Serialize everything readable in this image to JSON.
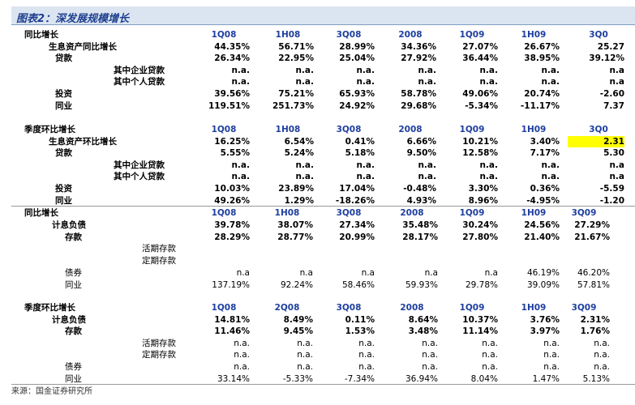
{
  "title": "图表2：深发展规模增长",
  "sections": [
    {
      "header": [
        "同比增长",
        "1Q08",
        "1H08",
        "3Q08",
        "2008",
        "1Q09",
        "1H09",
        "3Q0"
      ],
      "rows": [
        {
          "label": "生息资产同比增长",
          "values": [
            "44.35%",
            "56.71%",
            "28.99%",
            "34.36%",
            "27.07%",
            "26.67%",
            "25.27"
          ]
        },
        {
          "label": "贷款",
          "values": [
            "26.34%",
            "22.95%",
            "25.04%",
            "27.92%",
            "36.44%",
            "38.95%",
            "39.12%"
          ]
        },
        {
          "label": "其中企业贷款",
          "values": [
            "n.a.",
            "n.a.",
            "n.a.",
            "n.a.",
            "n.a.",
            "n.a.",
            "n.a"
          ]
        },
        {
          "label": "其中个人贷款",
          "values": [
            "n.a.",
            "n.a.",
            "n.a.",
            "n.a.",
            "n.a.",
            "n.a.",
            "n.a"
          ]
        },
        {
          "label": "投资",
          "values": [
            "39.56%",
            "75.21%",
            "65.93%",
            "58.78%",
            "49.06%",
            "20.74%",
            "-2.60"
          ]
        },
        {
          "label": "同业",
          "values": [
            "119.51%",
            "251.73%",
            "24.92%",
            "29.68%",
            "-5.34%",
            "-11.17%",
            "7.37"
          ]
        }
      ]
    },
    {
      "header": [
        "季度环比增长",
        "1Q08",
        "1H08",
        "3Q08",
        "2008",
        "1Q09",
        "1H09",
        "3Q0"
      ],
      "rows": [
        {
          "label": "生息资产环比增长",
          "values": [
            "16.25%",
            "6.54%",
            "0.41%",
            "6.66%",
            "10.21%",
            "3.40%",
            "2.31"
          ]
        },
        {
          "label": "贷款",
          "values": [
            "5.55%",
            "5.24%",
            "5.18%",
            "9.50%",
            "12.58%",
            "7.17%",
            "5.30"
          ]
        },
        {
          "label": "其中企业贷款",
          "values": [
            "n.a.",
            "n.a.",
            "n.a.",
            "n.a.",
            "n.a.",
            "n.a.",
            "n.a"
          ]
        },
        {
          "label": "其中个人贷款",
          "values": [
            "n.a.",
            "n.a.",
            "n.a.",
            "n.a.",
            "n.a.",
            "n.a.",
            "n.a"
          ]
        },
        {
          "label": "投资",
          "values": [
            "10.03%",
            "23.89%",
            "17.04%",
            "-0.48%",
            "3.30%",
            "0.36%",
            "-5.59"
          ]
        },
        {
          "label": "同业",
          "values": [
            "49.26%",
            "1.29%",
            "-18.26%",
            "4.93%",
            "8.96%",
            "-4.95%",
            "-1.20"
          ]
        }
      ]
    },
    {
      "header": [
        "同比增长",
        "1Q08",
        "1H08",
        "3Q08",
        "2008",
        "1Q09",
        "1H09",
        "3Q09"
      ],
      "rows": [
        {
          "label": "计息负债",
          "values": [
            "39.78%",
            "38.07%",
            "27.34%",
            "35.48%",
            "30.24%",
            "24.56%",
            "27.29%"
          ]
        },
        {
          "label": "存款",
          "values": [
            "28.29%",
            "28.77%",
            "20.99%",
            "28.17%",
            "27.80%",
            "21.40%",
            "21.67%"
          ]
        },
        {
          "label": "活期存款"
        },
        {
          "label": "定期存款"
        },
        {
          "label": "债券",
          "values": [
            "n.a",
            "n.a",
            "n.a",
            "n.a",
            "n.a",
            "46.19%",
            "46.20%"
          ]
        },
        {
          "label": "同业",
          "values": [
            "137.19%",
            "92.24%",
            "58.46%",
            "59.93%",
            "29.78%",
            "39.09%",
            "57.81%"
          ]
        }
      ]
    },
    {
      "header": [
        "季度环比增长",
        "1Q08",
        "2Q08",
        "3Q08",
        "2008",
        "1Q09",
        "1H09",
        "3Q09"
      ],
      "rows": [
        {
          "label": "计息负债",
          "values": [
            "14.81%",
            "8.49%",
            "0.11%",
            "8.64%",
            "10.37%",
            "3.76%",
            "2.31%"
          ]
        },
        {
          "label": "存款",
          "values": [
            "11.46%",
            "9.45%",
            "1.53%",
            "3.48%",
            "11.14%",
            "3.97%",
            "1.76%"
          ]
        },
        {
          "label": "活期存款",
          "values": [
            "n.a.",
            "n.a.",
            "n.a.",
            "n.a.",
            "n.a.",
            "n.a.",
            "n.a."
          ]
        },
        {
          "label": "定期存款",
          "values": [
            "n.a.",
            "n.a.",
            "n.a.",
            "n.a.",
            "n.a.",
            "n.a.",
            "n.a."
          ]
        },
        {
          "label": "债券",
          "values": [
            "n.a.",
            "n.a.",
            "n.a.",
            "n.a.",
            "n.a.",
            "n.a.",
            "n.a."
          ]
        },
        {
          "label": "同业",
          "values": [
            "33.14%",
            "-5.33%",
            "-7.34%",
            "36.94%",
            "8.04%",
            "1.47%",
            "5.13%"
          ]
        }
      ]
    }
  ],
  "source": "来源：国金证券研究所"
}
